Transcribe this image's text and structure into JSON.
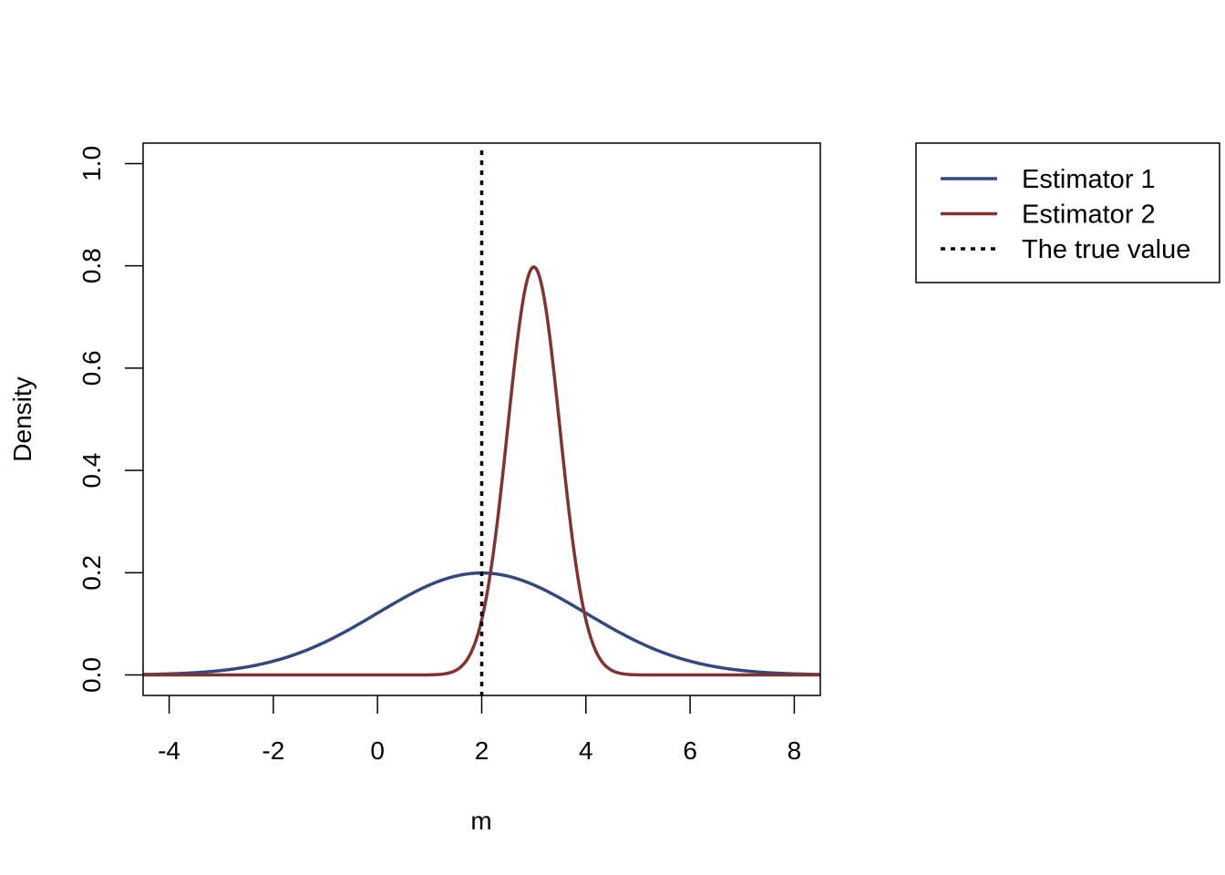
{
  "chart_data": {
    "type": "line",
    "title": "",
    "xlabel": "m",
    "ylabel": "Density",
    "xlim": [
      -4.5,
      8.5
    ],
    "ylim": [
      -0.04,
      1.04
    ],
    "xticks": [
      -4,
      -2,
      0,
      2,
      4,
      6,
      8
    ],
    "xtick_labels": [
      "-4",
      "-2",
      "0",
      "2",
      "4",
      "6",
      "8"
    ],
    "yticks": [
      0,
      0.2,
      0.4,
      0.6,
      0.8,
      1
    ],
    "ytick_labels": [
      "0.0",
      "0.2",
      "0.4",
      "0.6",
      "0.8",
      "1.0"
    ],
    "grid": false,
    "legend_position": "outside-top-right",
    "series": [
      {
        "name": "Estimator 1",
        "color": "#34497a",
        "style": "solid",
        "distribution": "normal",
        "mean": 2,
        "sd": 2,
        "peak_density": 0.2
      },
      {
        "name": "Estimator 2",
        "color": "#7f3434",
        "style": "solid",
        "distribution": "normal",
        "mean": 3,
        "sd": 0.5,
        "peak_density": 0.8
      }
    ],
    "reference_lines": [
      {
        "name": "The true value",
        "x": 2,
        "color": "#000000",
        "style": "dotted"
      }
    ]
  }
}
